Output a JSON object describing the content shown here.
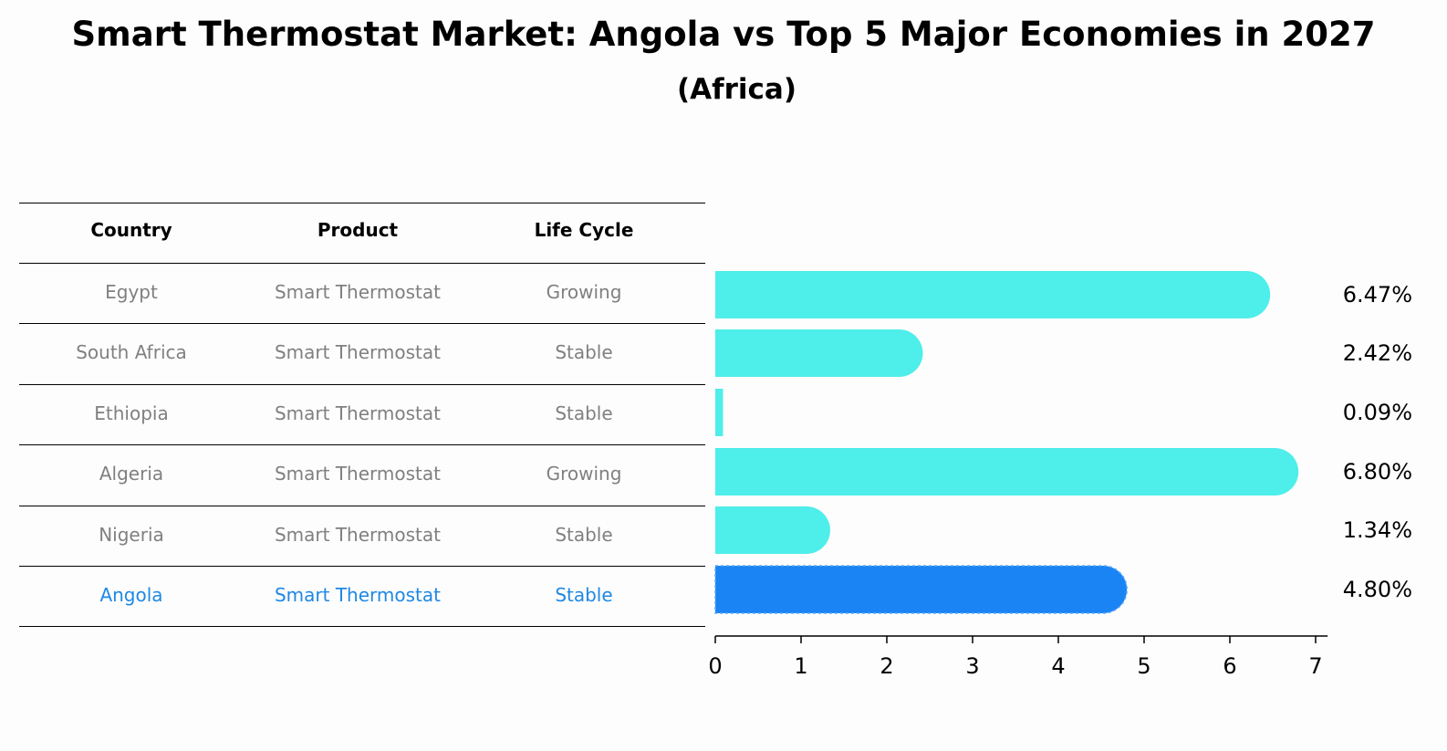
{
  "title": "Smart Thermostat Market: Angola vs Top 5 Major Economies in 2027",
  "subtitle": "(Africa)",
  "table": {
    "headers": [
      "Country",
      "Product",
      "Life Cycle"
    ],
    "rows": [
      {
        "country": "Egypt",
        "product": "Smart Thermostat",
        "life_cycle": "Growing"
      },
      {
        "country": "South Africa",
        "product": "Smart Thermostat",
        "life_cycle": "Stable"
      },
      {
        "country": "Ethiopia",
        "product": "Smart Thermostat",
        "life_cycle": "Stable"
      },
      {
        "country": "Algeria",
        "product": "Smart Thermostat",
        "life_cycle": "Growing"
      },
      {
        "country": "Nigeria",
        "product": "Smart Thermostat",
        "life_cycle": "Stable"
      },
      {
        "country": "Angola",
        "product": "Smart Thermostat",
        "life_cycle": "Stable"
      }
    ]
  },
  "colors": {
    "bar": "#4eeeea",
    "highlight_bar": "#1b84f5",
    "highlight_text": "#1e88e5",
    "row_text": "#808080"
  },
  "chart_data": {
    "type": "bar",
    "orientation": "horizontal",
    "categories": [
      "Egypt",
      "South Africa",
      "Ethiopia",
      "Algeria",
      "Nigeria",
      "Angola"
    ],
    "values": [
      6.47,
      2.42,
      0.09,
      6.8,
      1.34,
      4.8
    ],
    "value_labels": [
      "6.47%",
      "2.42%",
      "0.09%",
      "6.80%",
      "1.34%",
      "4.80%"
    ],
    "highlight": "Angola",
    "xlim": [
      0,
      7
    ],
    "xticks": [
      0,
      1,
      2,
      3,
      4,
      5,
      6,
      7
    ],
    "grid": false
  }
}
